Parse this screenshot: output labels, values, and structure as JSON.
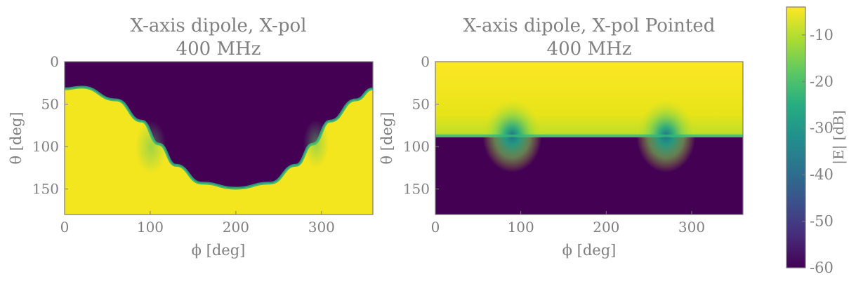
{
  "chart_data": [
    {
      "type": "heatmap",
      "title_line1": "X-axis dipole, X-pol",
      "title_line2": "400 MHz",
      "xlabel": "ϕ [deg]",
      "ylabel": "θ [deg]",
      "xlim": [
        0,
        360
      ],
      "ylim": [
        180,
        0
      ],
      "xticks": [
        0,
        100,
        200,
        300
      ],
      "yticks": [
        0,
        50,
        100,
        150
      ],
      "boundary_theta_at_phi": [
        {
          "x": 0,
          "y": 32
        },
        {
          "x": 20,
          "y": 30
        },
        {
          "x": 60,
          "y": 45
        },
        {
          "x": 90,
          "y": 70
        },
        {
          "x": 110,
          "y": 97
        },
        {
          "x": 130,
          "y": 122
        },
        {
          "x": 160,
          "y": 143
        },
        {
          "x": 200,
          "y": 149
        },
        {
          "x": 240,
          "y": 143
        },
        {
          "x": 270,
          "y": 122
        },
        {
          "x": 290,
          "y": 97
        },
        {
          "x": 310,
          "y": 70
        },
        {
          "x": 340,
          "y": 45
        },
        {
          "x": 360,
          "y": 32
        }
      ],
      "region_below_boundary_db": -4,
      "region_above_boundary_db": -60
    },
    {
      "type": "heatmap",
      "title_line1": "X-axis dipole, X-pol Pointed",
      "title_line2": "400 MHz",
      "xlabel": "ϕ [deg]",
      "ylabel": "θ [deg]",
      "xlim": [
        0,
        360
      ],
      "ylim": [
        180,
        0
      ],
      "xticks": [
        0,
        100,
        200,
        300
      ],
      "yticks": [
        0,
        50,
        100,
        150
      ],
      "horizon_theta": 89,
      "nulls_phi": [
        90,
        270
      ],
      "region_above_horizon_db": -4,
      "region_below_horizon_db": -60
    }
  ],
  "colorbar": {
    "label": "|E| [dB]",
    "range": [
      -60,
      -4
    ],
    "ticks": [
      -10,
      -20,
      -30,
      -40,
      -50,
      -60
    ],
    "tick_labels": [
      "-10",
      "-20",
      "-30",
      "-40",
      "-50",
      "-60"
    ],
    "colormap": "viridis",
    "stops": [
      "#440154",
      "#472c7a",
      "#3b518b",
      "#2c718e",
      "#21908d",
      "#27ad81",
      "#5cc863",
      "#aadc32",
      "#fde725"
    ]
  }
}
